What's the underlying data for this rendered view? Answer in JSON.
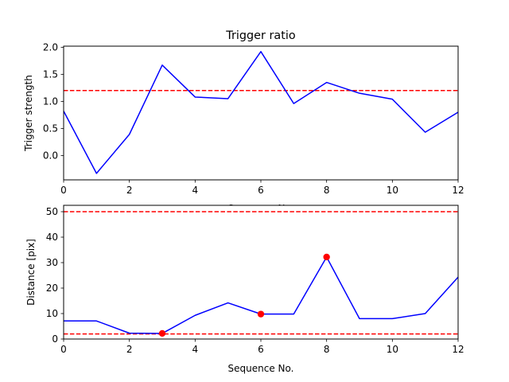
{
  "colors": {
    "series": "#0000ff",
    "threshold": "#ff0000",
    "marker": "#ff0000",
    "axis": "#000000",
    "background": "#ffffff"
  },
  "chart_data": [
    {
      "type": "line",
      "title": "Trigger ratio",
      "xlabel": "Sequence No.",
      "ylabel": "Trigger strength",
      "xlim": [
        0,
        12
      ],
      "ylim": [
        -0.45,
        2.02
      ],
      "xticks": [
        "0",
        "2",
        "4",
        "6",
        "8",
        "10",
        "12"
      ],
      "yticks": [
        "0.0",
        "0.5",
        "1.0",
        "1.5",
        "2.0"
      ],
      "grid": false,
      "series": [
        {
          "x": [
            0,
            1,
            2,
            3,
            4,
            5,
            6,
            7,
            8,
            9,
            10,
            11,
            12
          ],
          "values": [
            0.82,
            -0.33,
            0.39,
            1.67,
            1.08,
            1.05,
            1.92,
            0.96,
            1.35,
            1.15,
            1.04,
            0.43,
            0.8
          ]
        }
      ],
      "hlines": [
        1.2
      ],
      "markers": []
    },
    {
      "type": "line",
      "title": "",
      "xlabel": "Sequence No.",
      "ylabel": "Distance [pix]",
      "xlim": [
        0,
        12
      ],
      "ylim": [
        0,
        52.5
      ],
      "xticks": [
        "0",
        "2",
        "4",
        "6",
        "8",
        "10",
        "12"
      ],
      "yticks": [
        "0",
        "10",
        "20",
        "30",
        "40",
        "50"
      ],
      "grid": false,
      "series": [
        {
          "x": [
            0,
            1,
            2,
            3,
            4,
            5,
            6,
            7,
            8,
            9,
            10,
            11,
            12
          ],
          "values": [
            7.1,
            7.1,
            2.3,
            2.2,
            9.3,
            14.2,
            9.8,
            9.8,
            32.2,
            8.0,
            8.0,
            10.0,
            24.3
          ]
        }
      ],
      "hlines": [
        50,
        2
      ],
      "markers": [
        {
          "x": 3,
          "y": 2.2
        },
        {
          "x": 6,
          "y": 9.8
        },
        {
          "x": 8,
          "y": 32.2
        }
      ]
    }
  ]
}
